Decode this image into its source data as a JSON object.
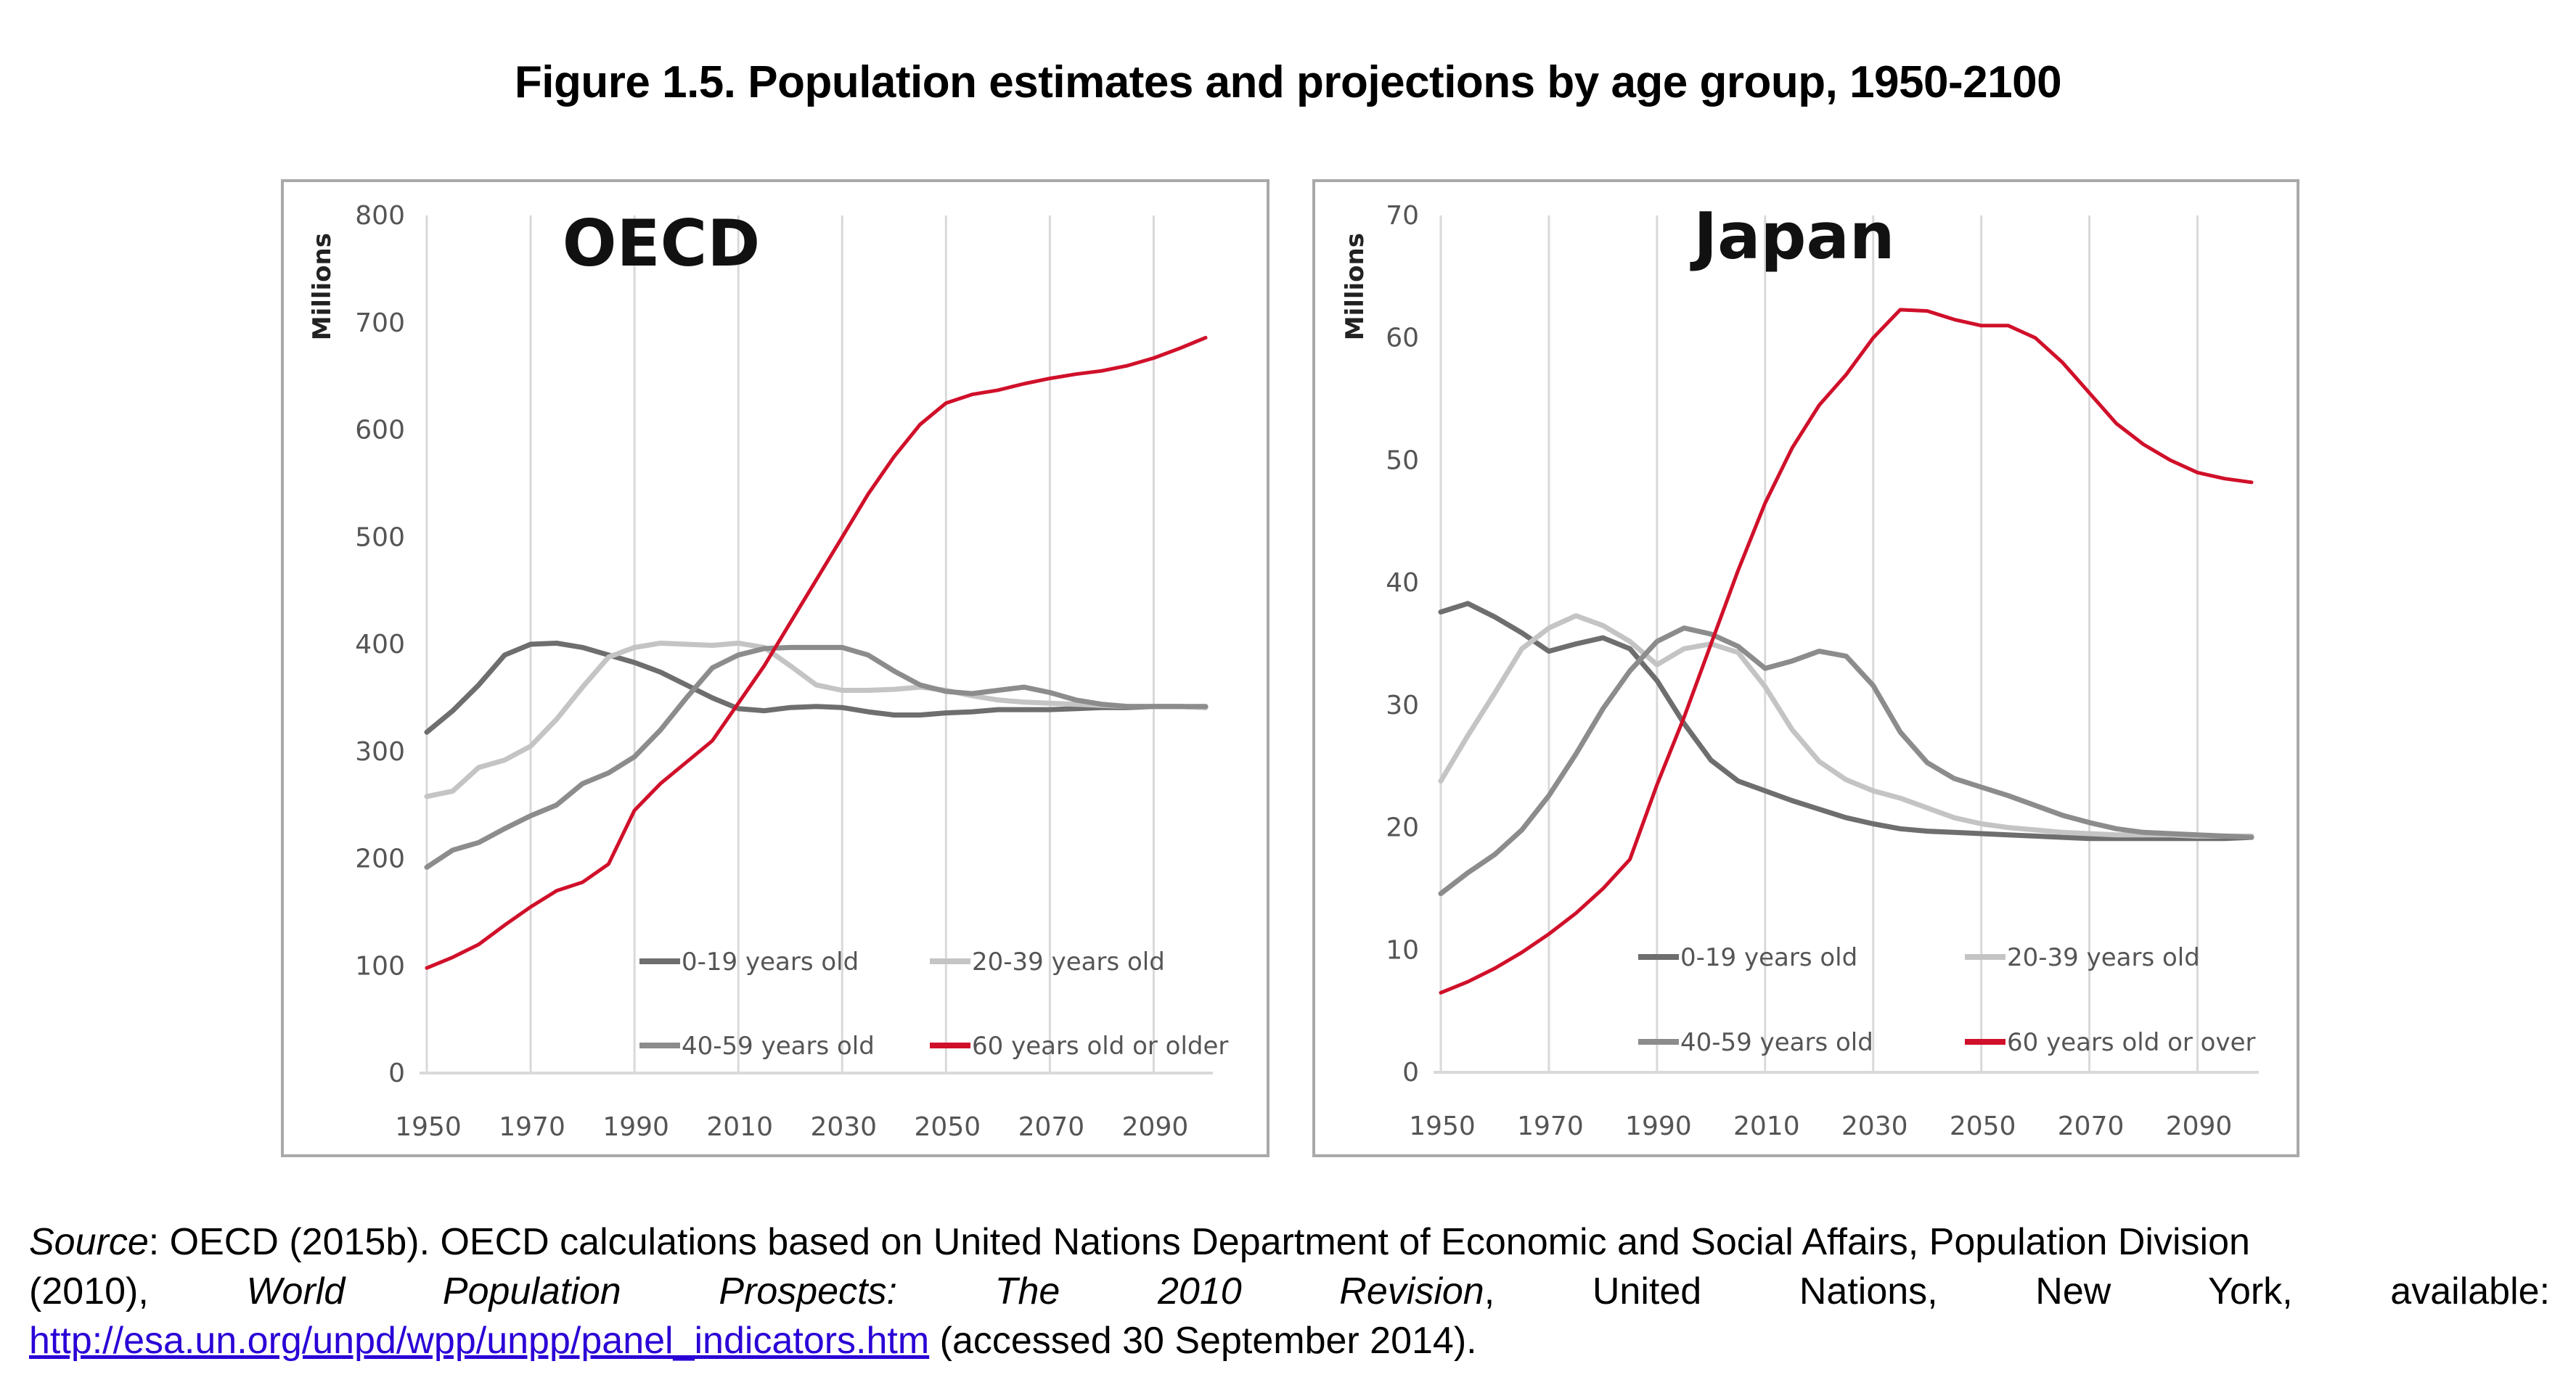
{
  "figure": {
    "title": "Figure 1.5. Population estimates and projections by age group, 1950-2100"
  },
  "source": {
    "label": "Source",
    "line1_rest": ": OECD (2015b). OECD calculations based on United Nations Department of Economic and Social Affairs, Population Division",
    "line2_prefix": "(2010),",
    "line2_italic": "World Population Prospects: The 2010 Revision",
    "line2_rest": ", United Nations, New York, available:",
    "link": "http://esa.un.org/unpd/wpp/unpp/panel_indicators.htm",
    "line3_rest": " (accessed 30 September 2014)."
  },
  "colors": {
    "age_0_19": "#6e6e6e",
    "age_20_39": "#c4c4c4",
    "age_40_59": "#8c8c8c",
    "age_60_plus": "#d0102a",
    "grid": "#d9d9d9",
    "axis": "#d9d9d9"
  },
  "chart_data": [
    {
      "type": "line",
      "title": "OECD",
      "xlabel": "",
      "ylabel": "Millions",
      "xlim": [
        1950,
        2100
      ],
      "ylim": [
        0,
        800
      ],
      "yticks": [
        0,
        100,
        200,
        300,
        400,
        500,
        600,
        700,
        800
      ],
      "xticks": [
        1950,
        1970,
        1990,
        2010,
        2030,
        2050,
        2070,
        2090
      ],
      "grid": "vertical",
      "legend": "bottom-right",
      "x": [
        1950,
        1955,
        1960,
        1965,
        1970,
        1975,
        1980,
        1985,
        1990,
        1995,
        2000,
        2005,
        2010,
        2015,
        2020,
        2025,
        2030,
        2035,
        2040,
        2045,
        2050,
        2055,
        2060,
        2065,
        2070,
        2075,
        2080,
        2085,
        2090,
        2095,
        2100
      ],
      "series": [
        {
          "name": "0-19 years old",
          "key": "age_0_19",
          "values": [
            318,
            338,
            362,
            390,
            400,
            401,
            397,
            390,
            383,
            374,
            362,
            350,
            340,
            338,
            341,
            342,
            341,
            337,
            334,
            334,
            336,
            337,
            339,
            339,
            339,
            340,
            341,
            341,
            342,
            342,
            341
          ]
        },
        {
          "name": "20-39 years old",
          "key": "age_20_39",
          "values": [
            258,
            263,
            285,
            292,
            305,
            330,
            360,
            388,
            397,
            401,
            400,
            399,
            401,
            397,
            380,
            362,
            357,
            357,
            358,
            360,
            357,
            352,
            348,
            346,
            345,
            344,
            343,
            342,
            342,
            342,
            341
          ]
        },
        {
          "name": "40-59 years old",
          "key": "age_40_59",
          "values": [
            192,
            208,
            215,
            228,
            240,
            250,
            270,
            280,
            295,
            320,
            350,
            378,
            390,
            396,
            397,
            397,
            397,
            390,
            375,
            362,
            356,
            354,
            357,
            360,
            355,
            348,
            344,
            342,
            342,
            342,
            342
          ]
        },
        {
          "name": "60 years old or older",
          "key": "age_60_plus",
          "values": [
            98,
            108,
            120,
            138,
            155,
            170,
            178,
            195,
            245,
            270,
            290,
            310,
            345,
            380,
            420,
            460,
            500,
            540,
            575,
            605,
            625,
            633,
            637,
            643,
            648,
            652,
            655,
            660,
            667,
            676,
            686
          ]
        }
      ]
    },
    {
      "type": "line",
      "title": "Japan",
      "xlabel": "",
      "ylabel": "Millions",
      "xlim": [
        1950,
        2100
      ],
      "ylim": [
        0,
        70
      ],
      "yticks": [
        0,
        10,
        20,
        30,
        40,
        50,
        60,
        70
      ],
      "xticks": [
        1950,
        1970,
        1990,
        2010,
        2030,
        2050,
        2070,
        2090
      ],
      "grid": "vertical",
      "legend": "bottom-right",
      "x": [
        1950,
        1955,
        1960,
        1965,
        1970,
        1975,
        1980,
        1985,
        1990,
        1995,
        2000,
        2005,
        2010,
        2015,
        2020,
        2025,
        2030,
        2035,
        2040,
        2045,
        2050,
        2055,
        2060,
        2065,
        2070,
        2075,
        2080,
        2085,
        2090,
        2095,
        2100
      ],
      "series": [
        {
          "name": "0-19 years old",
          "key": "age_0_19",
          "values": [
            37.6,
            38.3,
            37.2,
            35.9,
            34.4,
            35.0,
            35.5,
            34.6,
            32.0,
            28.5,
            25.5,
            23.8,
            23.0,
            22.2,
            21.5,
            20.8,
            20.3,
            19.9,
            19.7,
            19.6,
            19.5,
            19.4,
            19.3,
            19.2,
            19.1,
            19.1,
            19.1,
            19.1,
            19.1,
            19.1,
            19.2
          ]
        },
        {
          "name": "20-39 years old",
          "key": "age_20_39",
          "values": [
            23.8,
            27.5,
            31.0,
            34.6,
            36.3,
            37.3,
            36.5,
            35.2,
            33.3,
            34.6,
            35.0,
            34.3,
            31.5,
            28.0,
            25.4,
            23.9,
            23.0,
            22.4,
            21.6,
            20.8,
            20.3,
            20.0,
            19.8,
            19.6,
            19.5,
            19.4,
            19.4,
            19.4,
            19.3,
            19.3,
            19.3
          ]
        },
        {
          "name": "40-59 years old",
          "key": "age_40_59",
          "values": [
            14.6,
            16.3,
            17.8,
            19.8,
            22.6,
            26.0,
            29.7,
            32.8,
            35.2,
            36.3,
            35.8,
            34.8,
            33.0,
            33.6,
            34.4,
            34.0,
            31.6,
            27.8,
            25.3,
            24.0,
            23.3,
            22.6,
            21.8,
            21.0,
            20.4,
            19.9,
            19.6,
            19.5,
            19.4,
            19.3,
            19.2
          ]
        },
        {
          "name": "60 years old or over",
          "key": "age_60_plus",
          "values": [
            6.5,
            7.4,
            8.5,
            9.8,
            11.3,
            13.0,
            15.0,
            17.4,
            23.5,
            29.0,
            35.0,
            41.0,
            46.5,
            51.0,
            54.5,
            57.0,
            60.0,
            62.3,
            62.2,
            61.5,
            61.0,
            61.0,
            60.0,
            58.0,
            55.5,
            53.0,
            51.3,
            50.0,
            49.0,
            48.5,
            48.2
          ]
        }
      ]
    }
  ]
}
